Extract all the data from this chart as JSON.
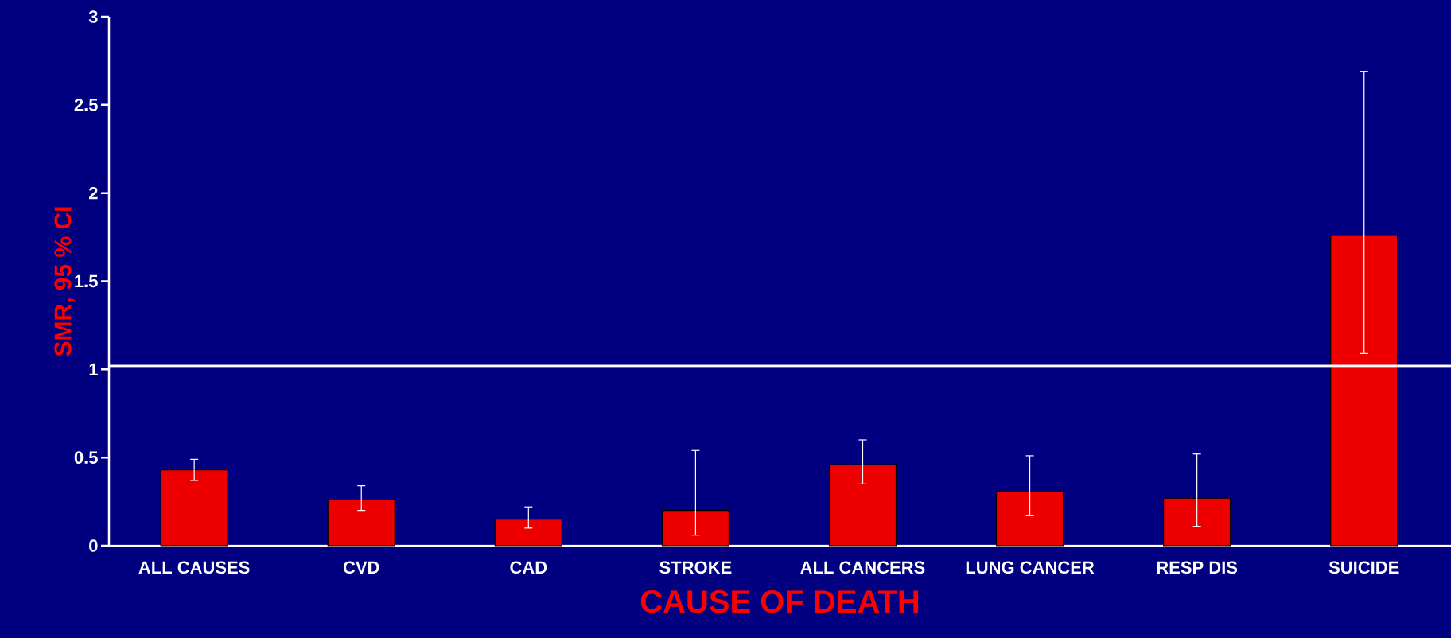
{
  "chart_data": {
    "type": "bar",
    "categories": [
      "ALL CAUSES",
      "CVD",
      "CAD",
      "STROKE",
      "ALL CANCERS",
      "LUNG CANCER",
      "RESP DIS",
      "SUICIDE"
    ],
    "values": [
      0.43,
      0.26,
      0.15,
      0.2,
      0.46,
      0.31,
      0.27,
      1.76
    ],
    "errors": [
      [
        0.37,
        0.49
      ],
      [
        0.2,
        0.34
      ],
      [
        0.1,
        0.22
      ],
      [
        0.06,
        0.54
      ],
      [
        0.35,
        0.6
      ],
      [
        0.17,
        0.51
      ],
      [
        0.11,
        0.52
      ],
      [
        1.09,
        2.69
      ]
    ],
    "color": "#ee0000",
    "xlabel": "CAUSE OF DEATH",
    "ylabel": "SMR, 95 % CI",
    "ylim": [
      0,
      3
    ],
    "yticks": [
      0,
      0.5,
      1,
      1.5,
      2,
      2.5,
      3
    ],
    "ref_lines": [
      {
        "axis": "y",
        "value": 1.02,
        "color": "#ffffff"
      }
    ]
  }
}
